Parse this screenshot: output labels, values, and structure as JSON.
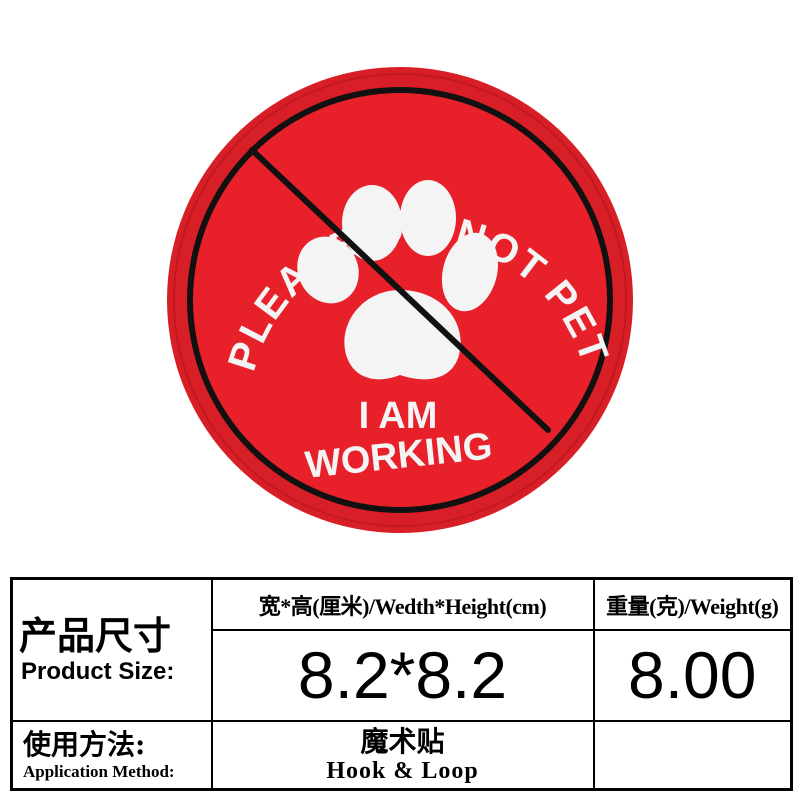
{
  "patch": {
    "top_text": "PLEASE DO NOT PET ME",
    "bottom_line1": "I AM",
    "bottom_line2": "WORKING",
    "colors": {
      "patch_red": "#e8202a",
      "border_red": "#d81e26",
      "ring_black": "#111111",
      "embroidery_white": "#f4f4f4"
    },
    "icon": "paw-print-icon"
  },
  "specs": {
    "product_size_zh": "产品尺寸",
    "product_size_en": "Product Size:",
    "dimension_header": "宽*高(厘米)/Wedth*Height(cm)",
    "weight_header": "重量(克)/Weight(g)",
    "dimension_value": "8.2*8.2",
    "weight_value": "8.00",
    "application_zh": "使用方法:",
    "application_en": "Application Method:",
    "method_zh": "魔术贴",
    "method_en": "Hook & Loop"
  }
}
